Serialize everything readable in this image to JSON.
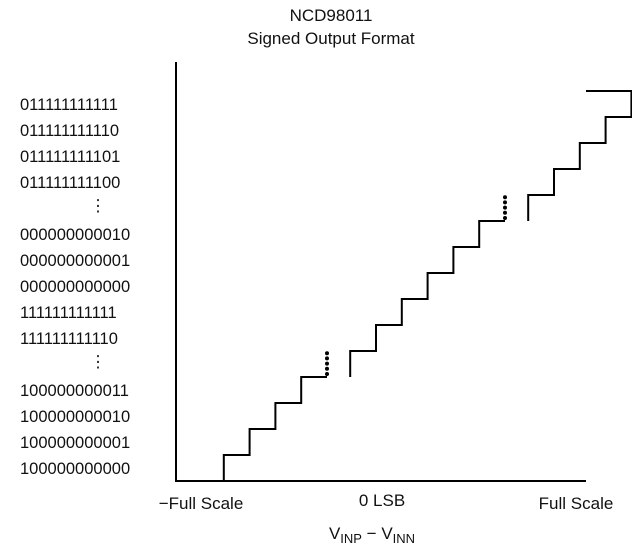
{
  "chart_data": {
    "type": "line",
    "title": "NCD98011",
    "subtitle": "Signed Output Format",
    "ylabel": "",
    "xlabel": {
      "main_1": "V",
      "sub_1": "INP",
      "sep": " − ",
      "main_2": "V",
      "sub_2": "INN"
    },
    "x_ticks": [
      "−Full Scale",
      "0 LSB",
      "Full Scale"
    ],
    "y_ticks": [
      {
        "level": 0,
        "code": "100000000000"
      },
      {
        "level": 1,
        "code": "100000000001"
      },
      {
        "level": 2,
        "code": "100000000010"
      },
      {
        "level": 3,
        "code": "100000000011"
      },
      {
        "level": 4,
        "code": "⋮"
      },
      {
        "level": 5,
        "code": "111111111110"
      },
      {
        "level": 6,
        "code": "111111111111"
      },
      {
        "level": 7,
        "code": "000000000000"
      },
      {
        "level": 8,
        "code": "000000000001"
      },
      {
        "level": 9,
        "code": "000000000010"
      },
      {
        "level": 10,
        "code": "⋮"
      },
      {
        "level": 11,
        "code": "011111111100"
      },
      {
        "level": 12,
        "code": "011111111101"
      },
      {
        "level": 13,
        "code": "011111111110"
      },
      {
        "level": 14,
        "code": "011111111111"
      }
    ],
    "staircase": {
      "segments": [
        {
          "levels": [
            0,
            1,
            2,
            3,
            4
          ]
        },
        {
          "levels": [
            5,
            6,
            7,
            8,
            9,
            10
          ]
        },
        {
          "levels": [
            11,
            12,
            13,
            14,
            15
          ]
        }
      ],
      "ellipsis_between_segments": true
    },
    "grid": false,
    "legend": "none"
  }
}
